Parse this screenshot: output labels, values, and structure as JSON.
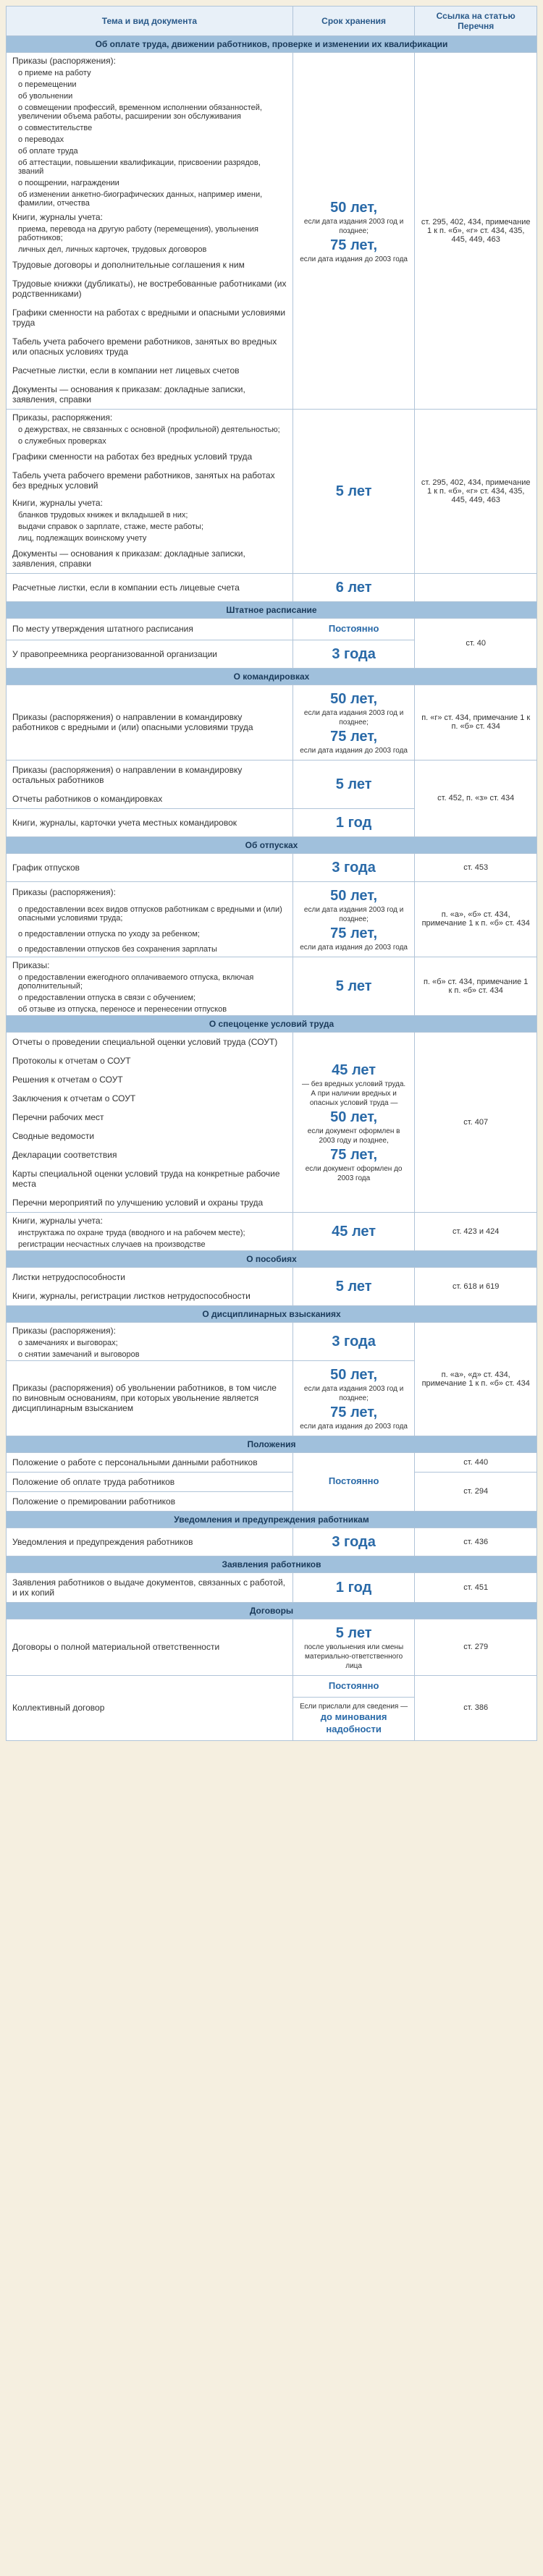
{
  "headers": {
    "topic": "Тема и вид документа",
    "term": "Срок хранения",
    "ref": "Ссылка на статью Перечня"
  },
  "sections": [
    {
      "title": "Об оплате труда, движении работников, проверке и изменении их квалификации",
      "groups": [
        {
          "topics": [
            {
              "text": "Приказы (распоряжения):",
              "cls": "intro"
            },
            {
              "text": "о приеме на работу",
              "cls": "sub"
            },
            {
              "text": "о перемещении",
              "cls": "sub"
            },
            {
              "text": "об увольнении",
              "cls": "sub"
            },
            {
              "text": "о совмещении профессий, временном исполнении обязанностей, увеличении объема работы, расширении зон обслуживания",
              "cls": "sub"
            },
            {
              "text": "о совместительстве",
              "cls": "sub"
            },
            {
              "text": "о переводах",
              "cls": "sub"
            },
            {
              "text": "об оплате труда",
              "cls": "sub"
            },
            {
              "text": "об аттестации, повышении квалификации, присвоении разрядов, званий",
              "cls": "sub"
            },
            {
              "text": "о поощрении, награждении",
              "cls": "sub"
            },
            {
              "text": "об изменении анкетно-биографических данных, например имени, фамилии, отчества",
              "cls": "sub"
            },
            {
              "text": "Книги, журналы учета:",
              "cls": "intro"
            },
            {
              "text": "приема, перевода на другую работу (перемещения), увольнения работников;",
              "cls": "sub"
            },
            {
              "text": "личных дел, личных карточек, трудовых договоров",
              "cls": "sub"
            },
            {
              "text": "Трудовые договоры и дополнительные соглашения к ним",
              "cls": "normal"
            },
            {
              "text": "Трудовые книжки (дубликаты), не востребованные работниками (их родственниками)",
              "cls": "normal"
            },
            {
              "text": "Графики сменности на работах с вредными и опасными условиями труда",
              "cls": "normal"
            },
            {
              "text": "Табель учета рабочего времени работников, занятых во вредных или опасных условиях труда",
              "cls": "normal"
            },
            {
              "text": "Расчетные листки, если в компании нет лицевых счетов",
              "cls": "normal"
            },
            {
              "text": "Документы — основания к приказам: докладные записки, заявления, справки",
              "cls": "normal"
            }
          ],
          "term": [
            {
              "big": "50 лет,"
            },
            {
              "small": "если дата издания 2003 год и позднее;"
            },
            {
              "big": "75 лет,"
            },
            {
              "small": "если дата издания до 2003 года"
            }
          ],
          "ref": "ст. 295, 402, 434, примечание 1 к п. «б», «г» ст. 434, 435, 445, 449, 463"
        },
        {
          "topics": [
            {
              "text": "Приказы, распоряжения:",
              "cls": "intro"
            },
            {
              "text": "о дежурствах, не связанных с основной (профильной) деятельностью;",
              "cls": "sub"
            },
            {
              "text": "о служебных проверках",
              "cls": "sub"
            },
            {
              "text": "Графики сменности на работах без вредных условий труда",
              "cls": "normal"
            },
            {
              "text": "Табель учета рабочего времени работников, занятых на работах без вредных условий",
              "cls": "normal"
            },
            {
              "text": "Книги, журналы учета:",
              "cls": "intro"
            },
            {
              "text": "бланков трудовых книжек и вкладышей в них;",
              "cls": "sub"
            },
            {
              "text": "выдачи справок о зарплате, стаже, месте работы;",
              "cls": "sub"
            },
            {
              "text": "лиц, подлежащих воинскому учету",
              "cls": "sub"
            },
            {
              "text": "Документы — основания к приказам: докладные записки, заявления, справки",
              "cls": "normal"
            }
          ],
          "term": [
            {
              "big": "5 лет"
            }
          ],
          "ref": "ст. 295, 402, 434, примечание 1 к п. «б», «г» ст. 434, 435, 445, 449, 463"
        },
        {
          "topics": [
            {
              "text": "Расчетные листки, если в компании есть лицевые счета",
              "cls": "normal"
            }
          ],
          "term": [
            {
              "big": "6 лет"
            }
          ],
          "ref": ""
        }
      ]
    },
    {
      "title": "Штатное расписание",
      "groups": [
        {
          "topics": [
            {
              "text": "По месту утверждения штатного расписания",
              "cls": "normal"
            }
          ],
          "term": [
            {
              "mid": "Постоянно"
            }
          ],
          "ref": "ст. 40",
          "refRowspan": 2
        },
        {
          "topics": [
            {
              "text": "У правопреемника реорганизованной организации",
              "cls": "normal"
            }
          ],
          "term": [
            {
              "big": "3 года"
            }
          ]
        }
      ]
    },
    {
      "title": "О командировках",
      "groups": [
        {
          "topics": [
            {
              "text": "Приказы (распоряжения) о направлении в командировку работников с вредными и (или) опасными условиями труда",
              "cls": "normal"
            }
          ],
          "term": [
            {
              "big": "50 лет,"
            },
            {
              "small": "если дата издания 2003 год и позднее;"
            },
            {
              "big": "75 лет,"
            },
            {
              "small": "если дата издания до 2003 года"
            }
          ],
          "ref": "п. «г» ст. 434, примечание 1 к п. «б» ст. 434"
        },
        {
          "topics": [
            {
              "text": "Приказы (распоряжения) о направлении в командировку остальных работников",
              "cls": "normal"
            },
            {
              "text": "Отчеты работников о командировках",
              "cls": "normal"
            }
          ],
          "term": [
            {
              "big": "5 лет"
            }
          ],
          "ref": "ст. 452, п. «з» ст. 434",
          "refRowspan": 2
        },
        {
          "topics": [
            {
              "text": "Книги, журналы, карточки учета местных командировок",
              "cls": "normal"
            }
          ],
          "term": [
            {
              "big": "1 год"
            }
          ]
        }
      ]
    },
    {
      "title": "Об отпусках",
      "groups": [
        {
          "topics": [
            {
              "text": "График отпусков",
              "cls": "normal"
            }
          ],
          "term": [
            {
              "big": "3 года"
            }
          ],
          "ref": "ст. 453"
        },
        {
          "topics": [
            {
              "text": "Приказы (распоряжения):",
              "cls": "intro"
            },
            {
              "text": "о предоставлении всех видов отпусков работникам с вредными и (или) опасными условиями труда;",
              "cls": "sub"
            },
            {
              "text": "о предоставлении отпуска по уходу за ребенком;",
              "cls": "sub"
            },
            {
              "text": "о предоставлении отпусков без сохранения зарплаты",
              "cls": "sub"
            }
          ],
          "term": [
            {
              "big": "50 лет,"
            },
            {
              "small": "если дата издания 2003 год и позднее;"
            },
            {
              "big": "75 лет,"
            },
            {
              "small": "если дата издания до 2003 года"
            }
          ],
          "ref": "п. «а», «б» ст. 434, примечание 1 к п. «б» ст. 434"
        },
        {
          "topics": [
            {
              "text": "Приказы:",
              "cls": "intro"
            },
            {
              "text": "о предоставлении ежегодного оплачиваемого отпуска, включая дополнительный;",
              "cls": "sub"
            },
            {
              "text": "о предоставлении отпуска в связи с обучением;",
              "cls": "sub"
            },
            {
              "text": "об отзыве из отпуска, переносе и перенесении отпусков",
              "cls": "sub"
            }
          ],
          "term": [
            {
              "big": "5 лет"
            }
          ],
          "ref": "п. «б» ст. 434, примечание 1 к п. «б» ст. 434"
        }
      ]
    },
    {
      "title": "О спецоценке условий труда",
      "groups": [
        {
          "topics": [
            {
              "text": "Отчеты о проведении специальной оценки условий труда (СОУТ)",
              "cls": "normal"
            },
            {
              "text": "Протоколы к отчетам о СОУТ",
              "cls": "normal"
            },
            {
              "text": "Решения к отчетам о СОУТ",
              "cls": "normal"
            },
            {
              "text": "Заключения к отчетам о СОУТ",
              "cls": "normal"
            },
            {
              "text": "Перечни рабочих мест",
              "cls": "normal"
            },
            {
              "text": "Сводные ведомости",
              "cls": "normal"
            },
            {
              "text": "Декларации соответствия",
              "cls": "normal"
            },
            {
              "text": "Карты специальной оценки условий труда на конкретные рабочие места",
              "cls": "normal"
            },
            {
              "text": "Перечни мероприятий по улучшению условий и охраны труда",
              "cls": "normal"
            }
          ],
          "term": [
            {
              "big": "45 лет"
            },
            {
              "small": "— без вредных условий труда. А при наличии вредных и опасных условий труда —"
            },
            {
              "big": "50 лет,"
            },
            {
              "small": "если документ оформлен в 2003 году и позднее,"
            },
            {
              "big": "75 лет,"
            },
            {
              "small": "если документ оформлен до 2003 года"
            }
          ],
          "ref": "ст. 407"
        },
        {
          "topics": [
            {
              "text": "Книги, журналы учета:",
              "cls": "intro"
            },
            {
              "text": "инструктажа по охране труда (вводного и на рабочем месте);",
              "cls": "sub"
            },
            {
              "text": "регистрации несчастных случаев на производстве",
              "cls": "sub"
            }
          ],
          "term": [
            {
              "big": "45 лет"
            }
          ],
          "ref": "ст. 423 и 424"
        }
      ]
    },
    {
      "title": "О пособиях",
      "groups": [
        {
          "topics": [
            {
              "text": "Листки нетрудоспособности",
              "cls": "normal"
            },
            {
              "text": "Книги, журналы, регистрации листков нетрудоспособности",
              "cls": "normal"
            }
          ],
          "term": [
            {
              "big": "5 лет"
            }
          ],
          "ref": "ст. 618 и 619"
        }
      ]
    },
    {
      "title": "О дисциплинарных взысканиях",
      "groups": [
        {
          "topics": [
            {
              "text": "Приказы (распоряжения):",
              "cls": "intro"
            },
            {
              "text": "о замечаниях и выговорах;",
              "cls": "sub"
            },
            {
              "text": "о снятии замечаний и выговоров",
              "cls": "sub"
            }
          ],
          "term": [
            {
              "big": "3 года"
            }
          ],
          "ref": "п. «а», «д» ст. 434, примечание 1 к п. «б» ст. 434",
          "refRowspan": 2
        },
        {
          "topics": [
            {
              "text": "Приказы (распоряжения) об увольнении работников, в том числе по виновным основаниям, при которых увольнение является дисциплинарным взысканием",
              "cls": "normal"
            }
          ],
          "term": [
            {
              "big": "50 лет,"
            },
            {
              "small": "если дата издания 2003 год и позднее;"
            },
            {
              "big": "75 лет,"
            },
            {
              "small": "если дата издания до 2003 года"
            }
          ]
        }
      ]
    },
    {
      "title": "Положения",
      "groups": [
        {
          "topics": [
            {
              "text": "Положение о работе с персональными данными работников",
              "cls": "normal"
            }
          ],
          "term": [
            {
              "mid": "Постоянно"
            }
          ],
          "ref": "ст. 440",
          "termRowspan": 3
        },
        {
          "topics": [
            {
              "text": "Положение об оплате труда работников",
              "cls": "normal"
            }
          ],
          "ref": "ст. 294",
          "refRowspan": 2
        },
        {
          "topics": [
            {
              "text": "Положение о премировании работников",
              "cls": "normal"
            }
          ]
        }
      ]
    },
    {
      "title": "Уведомления и предупреждения работникам",
      "groups": [
        {
          "topics": [
            {
              "text": "Уведомления и предупреждения работников",
              "cls": "normal"
            }
          ],
          "term": [
            {
              "big": "3 года"
            }
          ],
          "ref": "ст. 436"
        }
      ]
    },
    {
      "title": "Заявления работников",
      "groups": [
        {
          "topics": [
            {
              "text": "Заявления работников о выдаче документов, связанных с работой, и их копий",
              "cls": "normal"
            }
          ],
          "term": [
            {
              "big": "1 год"
            }
          ],
          "ref": "ст. 451"
        }
      ]
    },
    {
      "title": "Договоры",
      "groups": [
        {
          "topics": [
            {
              "text": "Договоры о полной материальной ответственности",
              "cls": "normal"
            }
          ],
          "term": [
            {
              "big": "5 лет"
            },
            {
              "small": "после увольнения или смены материально-ответственного лица"
            }
          ],
          "ref": "ст. 279"
        },
        {
          "topics": [
            {
              "text": "Коллективный договор",
              "cls": "normal"
            }
          ],
          "termSplit": [
            [
              {
                "mid": "Постоянно"
              }
            ],
            [
              {
                "small": "Если прислали для сведения —"
              },
              {
                "mid": "до минования надобности"
              }
            ]
          ],
          "ref": "ст. 386"
        }
      ]
    }
  ]
}
